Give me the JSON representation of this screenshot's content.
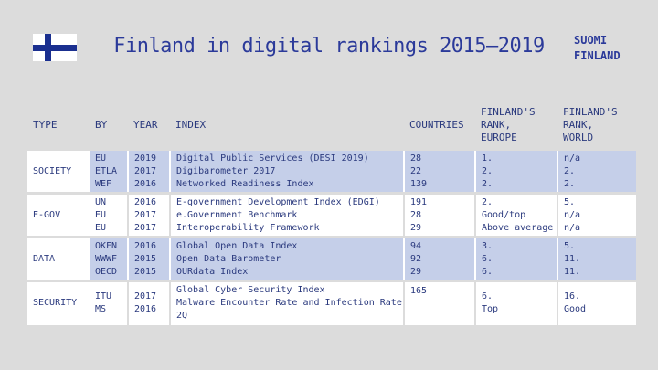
{
  "title": "Finland in digital rankings 2015–2019",
  "brand": {
    "line1": "SUOMI",
    "line2": "FINLAND"
  },
  "headers": {
    "type": "TYPE",
    "by": "BY",
    "year": "YEAR",
    "index": "INDEX",
    "countries": "COUNTRIES",
    "rank_europe": "FINLAND'S\nRANK,\nEUROPE",
    "rank_world": "FINLAND'S\nRANK,\nWORLD"
  },
  "rows": [
    {
      "type": "SOCIETY",
      "by": "EU\nETLA\nWEF",
      "year": "2019\n2017\n2016",
      "index": "Digital Public Services (DESI 2019)\nDigibarometer 2017\nNetworked Readiness Index",
      "countries": "28\n22\n139",
      "rank_europe": "1.\n2.\n2.",
      "rank_world": "n/a\n2.\n2."
    },
    {
      "type": "E-GOV",
      "by": "UN\nEU\nEU",
      "year": "2016\n2017\n2017",
      "index": "E-government Development Index (EDGI)\ne.Government Benchmark\nInteroperability Framework",
      "countries": "191\n28\n29",
      "rank_europe": "2.\nGood/top\nAbove average",
      "rank_world": "5.\nn/a\nn/a"
    },
    {
      "type": "DATA",
      "by": "OKFN\nWWWF\nOECD",
      "year": "2016\n2015\n2015",
      "index": "Global Open Data Index\nOpen Data Barometer\nOURdata Index",
      "countries": "94\n92\n29",
      "rank_europe": "3.\n6.\n6.",
      "rank_world": "5.\n11.\n11."
    },
    {
      "type": "SECURITY",
      "by": "ITU\nMS",
      "year": "2017\n2016",
      "index": "Global Cyber Security Index\nMalware Encounter Rate and Infection Rate 2Q",
      "countries": "165",
      "rank_europe": "6.\nTop",
      "rank_world": "16.\nGood"
    }
  ]
}
